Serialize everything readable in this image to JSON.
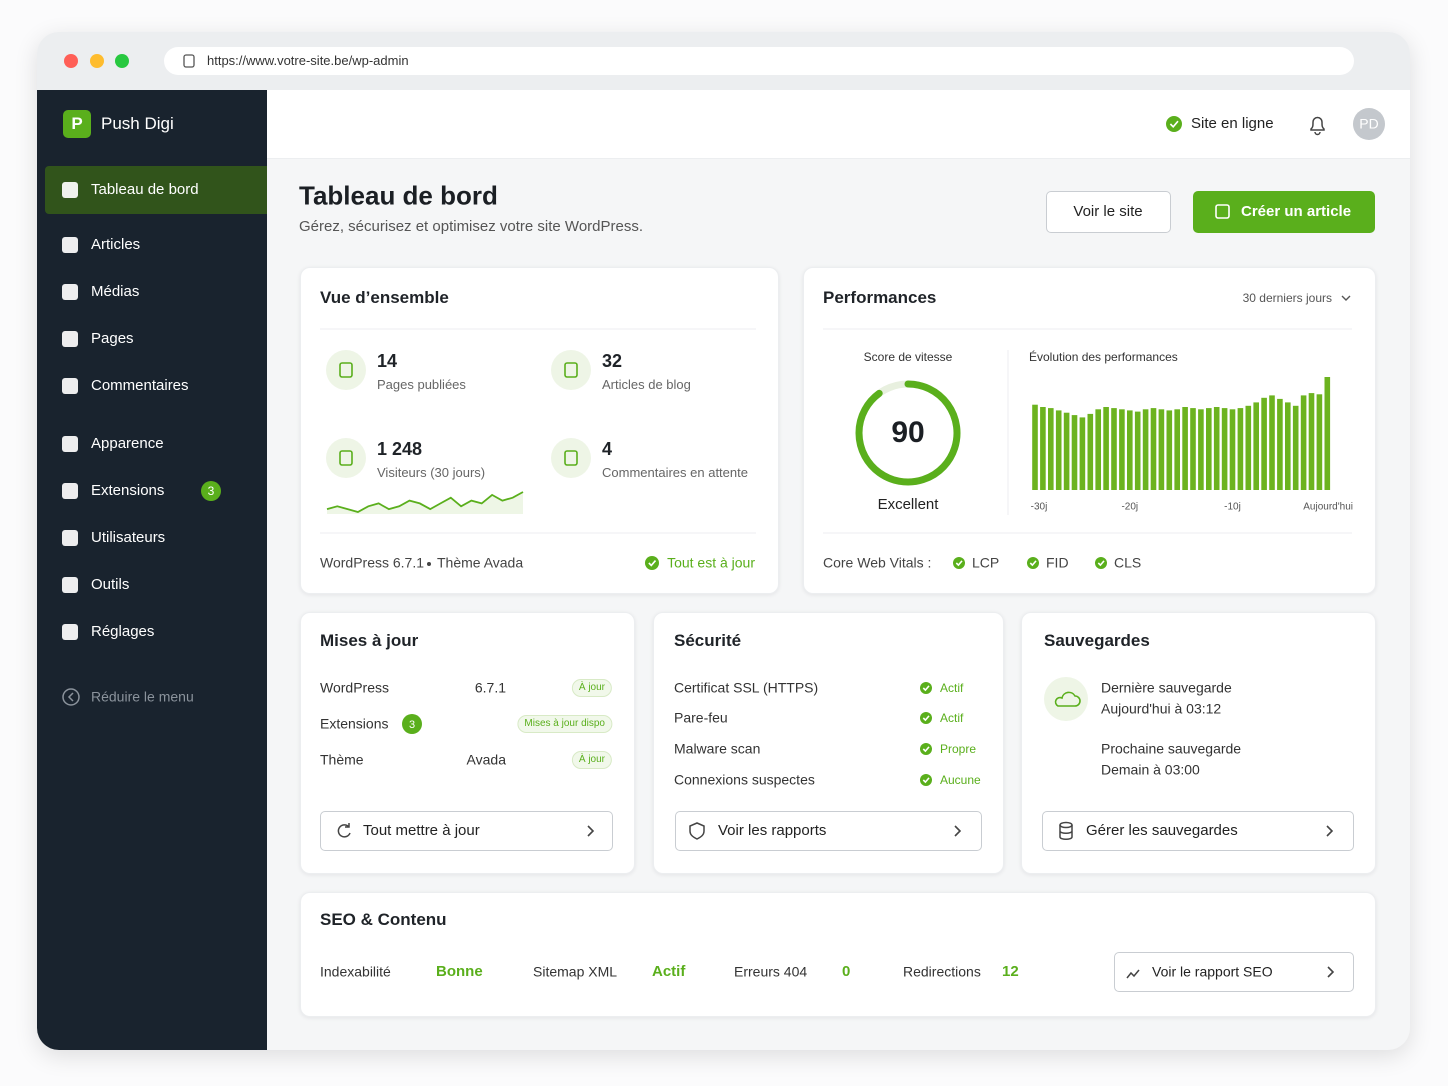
{
  "browser": {
    "url": "https://www.votre-site.be/wp-admin"
  },
  "sidebar": {
    "brand_initial": "P",
    "brand": "Push Digi",
    "menu": [
      {
        "label": "Tableau de bord"
      },
      {
        "label": "Articles"
      },
      {
        "label": "Médias"
      },
      {
        "label": "Pages"
      },
      {
        "label": "Commentaires"
      },
      {
        "label": "Apparence"
      },
      {
        "label": "Extensions",
        "badge": 3
      },
      {
        "label": "Utilisateurs"
      },
      {
        "label": "Outils"
      },
      {
        "label": "Réglages"
      }
    ],
    "collapse": "Réduire le menu"
  },
  "topbar": {
    "status": "Site en ligne",
    "avatar": "PD"
  },
  "page": {
    "title": "Tableau de bord",
    "subtitle": "Gérez, sécurisez et optimisez votre site WordPress.",
    "view_site": "Voir le site",
    "create": "Créer un article"
  },
  "overview": {
    "title": "Vue d’ensemble",
    "stats": [
      {
        "value": 14,
        "label": "Pages publiées"
      },
      {
        "value": 32,
        "label": "Articles de blog"
      },
      {
        "value": "1 248",
        "label": "Visiteurs (30 jours)"
      },
      {
        "value": 4,
        "label": "Commentaires en attente"
      }
    ],
    "sparkline": [
      3,
      4,
      3,
      2,
      4,
      5,
      3,
      4,
      6,
      5,
      3,
      5,
      7,
      4,
      6,
      5,
      8,
      6,
      7,
      9
    ],
    "version": "WordPress 6.7.1",
    "theme": "Thème Avada",
    "status": "Tout est à jour"
  },
  "performance": {
    "title": "Performances",
    "period": "30 derniers jours",
    "gauge": {
      "title": "Score de vitesse",
      "score": 90,
      "lim": [
        0,
        100
      ],
      "rating": "Excellent"
    },
    "chart": {
      "type": "bar",
      "title": "Évolution des performances",
      "color": "#6cb31f",
      "categories": [
        "-30j",
        null,
        null,
        null,
        null,
        null,
        null,
        null,
        null,
        null,
        null,
        null,
        "-20j",
        null,
        null,
        null,
        null,
        null,
        null,
        null,
        null,
        null,
        null,
        null,
        null,
        "-10j",
        null,
        null,
        null,
        null,
        null,
        null,
        null,
        null,
        null,
        null,
        null,
        "Aujourd'hui"
      ],
      "values": [
        74,
        72,
        71,
        69,
        67,
        65,
        63,
        66,
        70,
        72,
        71,
        70,
        69,
        68,
        70,
        71,
        70,
        69,
        70,
        72,
        71,
        70,
        71,
        72,
        71,
        70,
        71,
        73,
        76,
        80,
        82,
        79,
        76,
        73,
        82,
        84,
        83,
        98
      ]
    },
    "vitals_label": "Core Web Vitals :",
    "vitals": [
      "LCP",
      "FID",
      "CLS"
    ]
  },
  "updates": {
    "title": "Mises à jour",
    "rows": [
      {
        "name": "WordPress",
        "version": "6.7.1",
        "status": "À jour"
      },
      {
        "name": "Extensions",
        "badge": 3,
        "status": "Mises à jour dispo"
      },
      {
        "name": "Thème",
        "version": "Avada",
        "status": "À jour"
      }
    ],
    "action": "Tout mettre à jour"
  },
  "security": {
    "title": "Sécurité",
    "rows": [
      {
        "name": "Certificat SSL (HTTPS)",
        "status": "Actif"
      },
      {
        "name": "Pare-feu",
        "status": "Actif"
      },
      {
        "name": "Malware scan",
        "status": "Propre"
      },
      {
        "name": "Connexions suspectes",
        "status": "Aucune"
      }
    ],
    "action": "Voir les rapports"
  },
  "backups": {
    "title": "Sauvegardes",
    "last_label": "Dernière sauvegarde",
    "last_time": "Aujourd'hui à 03:12",
    "next_label": "Prochaine sauvegarde",
    "next_time": "Demain à 03:00",
    "action": "Gérer les sauvegardes"
  },
  "seo": {
    "title": "SEO & Contenu",
    "items": [
      {
        "label": "Indexabilité",
        "value": "Bonne"
      },
      {
        "label": "Sitemap XML",
        "value": "Actif"
      },
      {
        "label": "Erreurs 404",
        "value": 0
      },
      {
        "label": "Redirections",
        "value": 12
      }
    ],
    "action": "Voir le rapport SEO"
  }
}
